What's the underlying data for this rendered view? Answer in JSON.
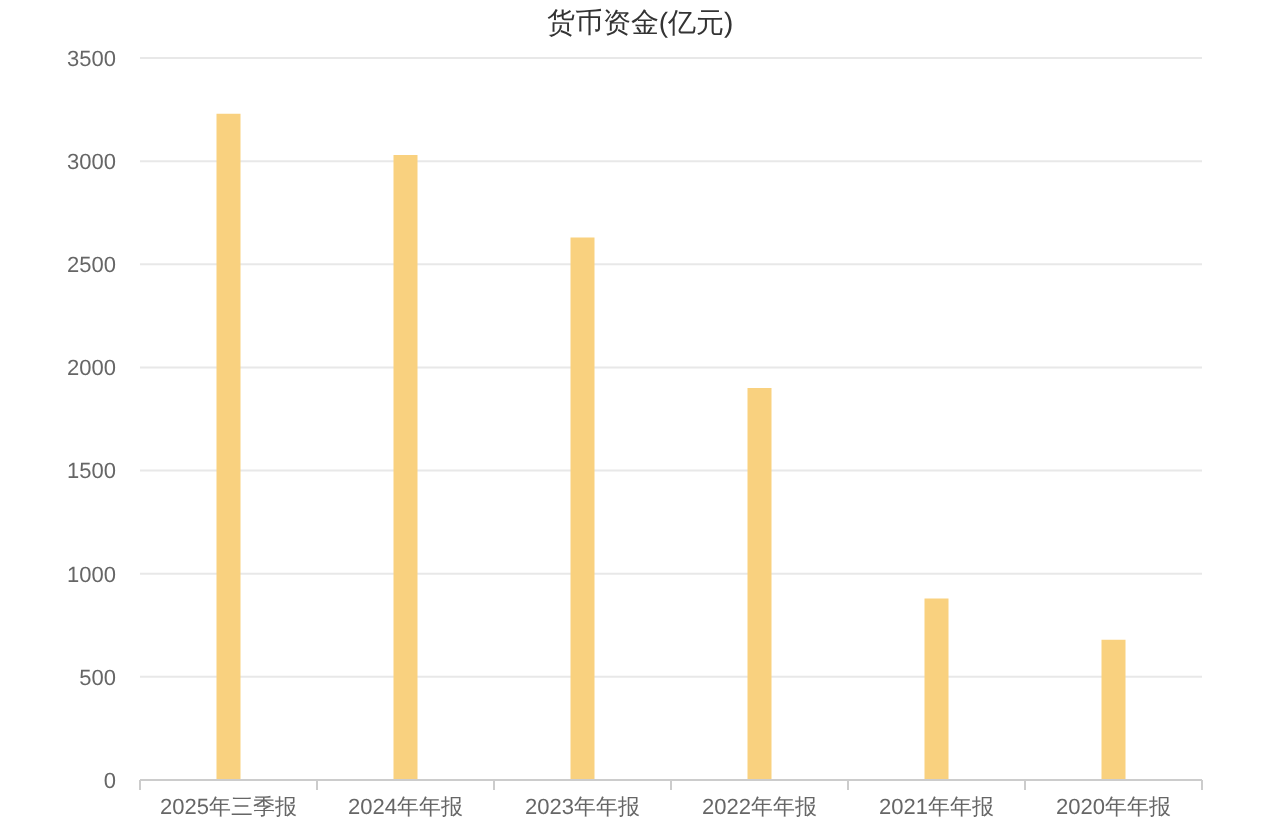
{
  "chart_data": {
    "type": "bar",
    "title": "货币资金(亿元)",
    "categories": [
      "2025年三季报",
      "2024年年报",
      "2023年年报",
      "2022年年报",
      "2021年年报",
      "2020年年报"
    ],
    "values": [
      3230,
      3030,
      2630,
      1900,
      880,
      680
    ],
    "color": "#f9d17f",
    "ylim": [
      0,
      3500
    ],
    "yticks": [
      0,
      500,
      1000,
      1500,
      2000,
      2500,
      3000,
      3500
    ],
    "grid": "y"
  }
}
